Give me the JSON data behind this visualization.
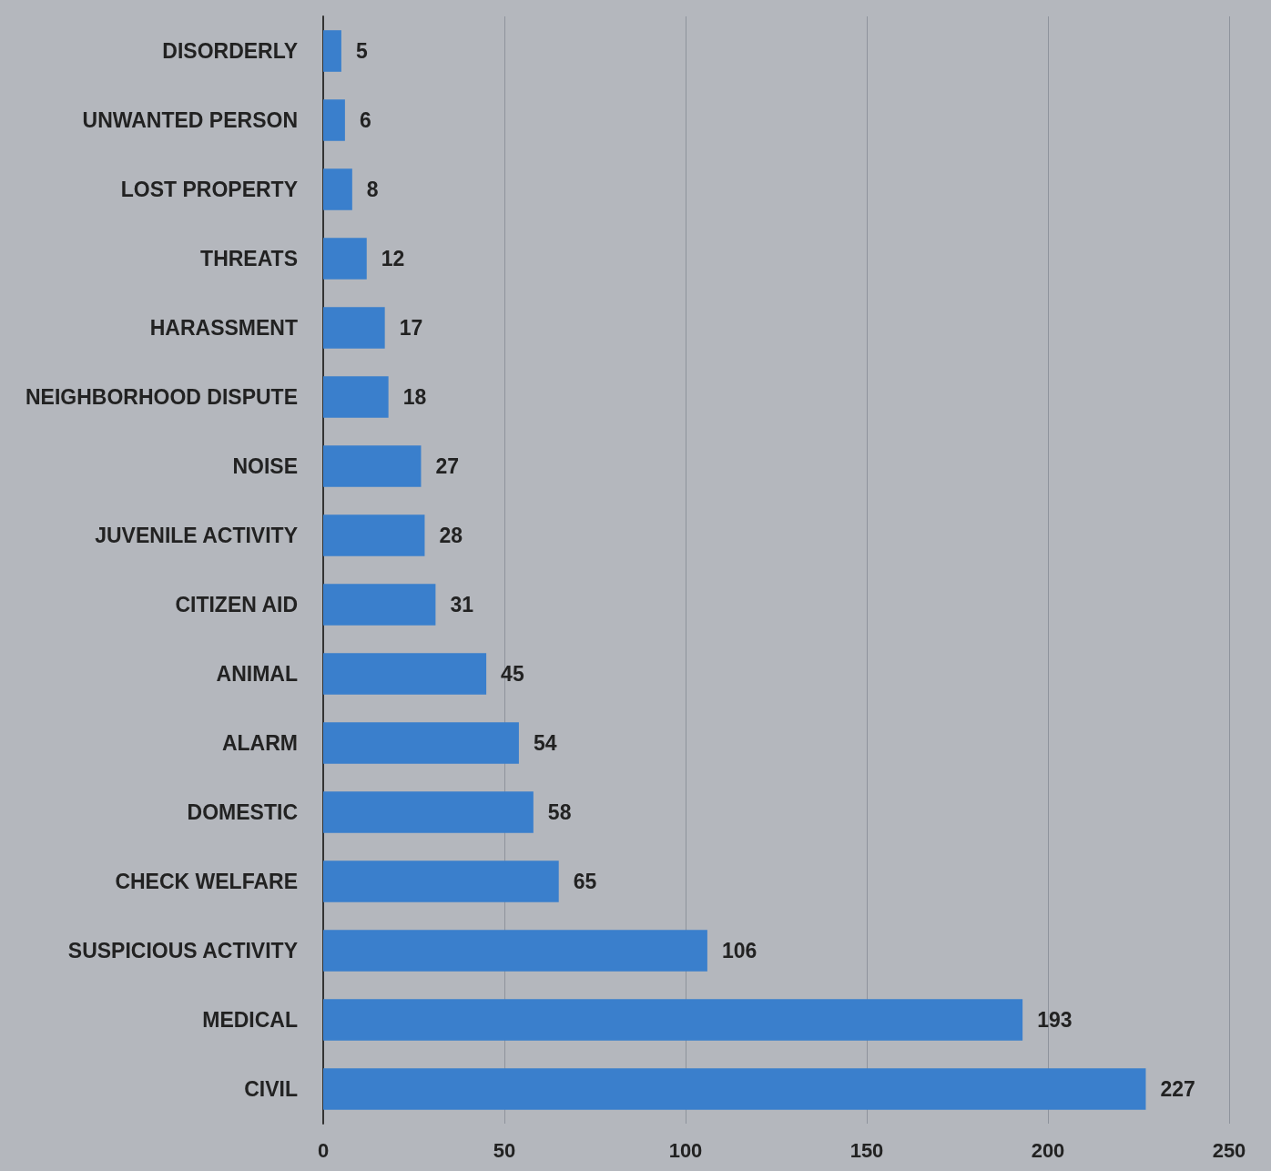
{
  "chart_data": {
    "type": "bar",
    "orientation": "horizontal",
    "categories": [
      "DISORDERLY",
      "UNWANTED PERSON",
      "LOST PROPERTY",
      "THREATS",
      "HARASSMENT",
      "NEIGHBORHOOD DISPUTE",
      "NOISE",
      "JUVENILE ACTIVITY",
      "CITIZEN AID",
      "ANIMAL",
      "ALARM",
      "DOMESTIC",
      "CHECK WELFARE",
      "SUSPICIOUS ACTIVITY",
      "MEDICAL",
      "CIVIL"
    ],
    "values": [
      5,
      6,
      8,
      12,
      17,
      18,
      27,
      28,
      31,
      45,
      54,
      58,
      65,
      106,
      193,
      227
    ],
    "color": "#3a7fcc",
    "xlim": [
      0,
      250
    ],
    "xticks": [
      0,
      50,
      100,
      150,
      200,
      250
    ],
    "grid": "x",
    "data_labels": true
  }
}
